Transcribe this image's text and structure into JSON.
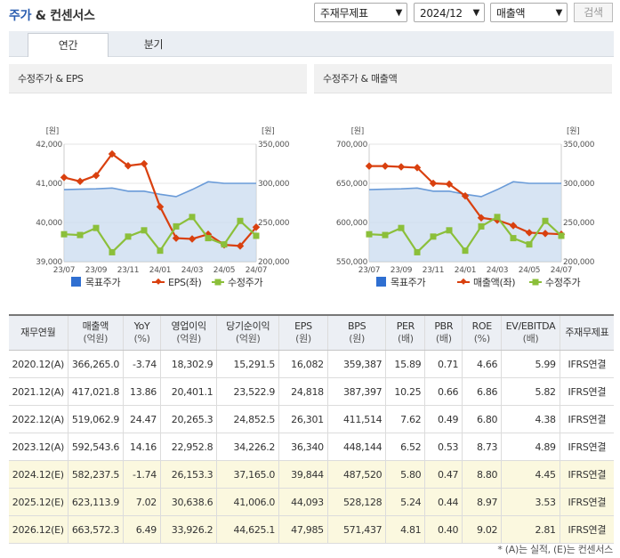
{
  "header": {
    "title_main": "주가",
    "title_rest": " & 컨센서스"
  },
  "controls": {
    "selects": [
      {
        "value": "주재무제표",
        "options_visible": "주재무제표"
      },
      {
        "value": "2024/12"
      },
      {
        "value": "매출액"
      }
    ],
    "search_label": "검색"
  },
  "tabs": [
    {
      "label": "연간",
      "active": true
    },
    {
      "label": "분기",
      "active": false
    }
  ],
  "charts": {
    "left_title": "수정주가 & EPS",
    "right_title": "수정주가 & 매출액"
  },
  "chart_data": [
    {
      "type": "line",
      "title": "수정주가 & EPS",
      "categories": [
        "23/07",
        "23/08",
        "23/09",
        "23/10",
        "23/11",
        "23/12",
        "24/01",
        "24/02",
        "24/03",
        "24/04",
        "24/05",
        "24/06",
        "24/07"
      ],
      "x_tick_labels": [
        "23/07",
        "23/09",
        "23/11",
        "24/01",
        "24/03",
        "24/05",
        "24/07"
      ],
      "left_axis": {
        "unit_label": "[원]",
        "ticks": [
          "42,000",
          "41,000",
          "40,000",
          "39,000"
        ],
        "range": [
          39000,
          42000
        ]
      },
      "right_axis": {
        "unit_label": "[원]",
        "ticks": [
          "350,000",
          "300,000",
          "250,000",
          "200,000"
        ],
        "range": [
          200000,
          350000
        ]
      },
      "series": [
        {
          "name": "목표주가",
          "axis": "right",
          "color": "#6a9bd8",
          "style": "area",
          "values": [
            292000,
            292500,
            293000,
            294000,
            290000,
            290000,
            286000,
            283000,
            292000,
            302000,
            300000,
            300000,
            300000
          ]
        },
        {
          "name": "EPS(좌)",
          "axis": "left",
          "color": "#d9400f",
          "style": "line-diamond",
          "values": [
            41150,
            41050,
            41200,
            41750,
            41450,
            41500,
            40400,
            39600,
            39580,
            39700,
            39430,
            39400,
            39880
          ]
        },
        {
          "name": "수정주가",
          "axis": "right",
          "color": "#8bbf3a",
          "style": "line-square",
          "values": [
            235000,
            234000,
            243000,
            212000,
            232000,
            240000,
            214000,
            245000,
            257000,
            230000,
            222000,
            252000,
            233000
          ]
        }
      ],
      "legend": [
        "목표주가",
        "EPS(좌)",
        "수정주가"
      ]
    },
    {
      "type": "line",
      "title": "수정주가 & 매출액",
      "categories": [
        "23/07",
        "23/08",
        "23/09",
        "23/10",
        "23/11",
        "23/12",
        "24/01",
        "24/02",
        "24/03",
        "24/04",
        "24/05",
        "24/06",
        "24/07"
      ],
      "x_tick_labels": [
        "23/07",
        "23/09",
        "23/11",
        "24/01",
        "24/03",
        "24/05",
        "24/07"
      ],
      "left_axis": {
        "unit_label": "[원]",
        "ticks": [
          "700,000",
          "650,000",
          "600,000",
          "550,000"
        ],
        "range": [
          550000,
          700000
        ]
      },
      "right_axis": {
        "unit_label": "[원]",
        "ticks": [
          "350,000",
          "300,000",
          "250,000",
          "200,000"
        ],
        "range": [
          200000,
          350000
        ]
      },
      "series": [
        {
          "name": "목표주가",
          "axis": "right",
          "color": "#6a9bd8",
          "style": "area",
          "values": [
            292000,
            292500,
            293000,
            294000,
            290000,
            290000,
            286000,
            283000,
            292000,
            302000,
            300000,
            300000,
            300000
          ]
        },
        {
          "name": "매출액(좌)",
          "axis": "left",
          "color": "#d9400f",
          "style": "line-diamond",
          "values": [
            672000,
            672000,
            671000,
            670000,
            650000,
            649000,
            634000,
            606000,
            603000,
            596000,
            587000,
            586000,
            585000
          ]
        },
        {
          "name": "수정주가",
          "axis": "right",
          "color": "#8bbf3a",
          "style": "line-square",
          "values": [
            235000,
            234000,
            243000,
            212000,
            232000,
            240000,
            214000,
            245000,
            257000,
            230000,
            222000,
            252000,
            233000
          ]
        }
      ],
      "legend": [
        "목표주가",
        "매출액(좌)",
        "수정주가"
      ]
    }
  ],
  "table": {
    "headers": [
      {
        "label": "재무연월",
        "unit": ""
      },
      {
        "label": "매출액",
        "unit": "(억원)"
      },
      {
        "label": "YoY",
        "unit": "(%)"
      },
      {
        "label": "영업이익",
        "unit": "(억원)"
      },
      {
        "label": "당기순이익",
        "unit": "(억원)"
      },
      {
        "label": "EPS",
        "unit": "(원)"
      },
      {
        "label": "BPS",
        "unit": "(원)"
      },
      {
        "label": "PER",
        "unit": "(배)"
      },
      {
        "label": "PBR",
        "unit": "(배)"
      },
      {
        "label": "ROE",
        "unit": "(%)"
      },
      {
        "label": "EV/EBITDA",
        "unit": "(배)"
      },
      {
        "label": "주재무제표",
        "unit": ""
      }
    ],
    "rows": [
      {
        "estimate": false,
        "cells": [
          "2020.12(A)",
          "366,265.0",
          "-3.74",
          "18,302.9",
          "15,291.5",
          "16,082",
          "359,387",
          "15.89",
          "0.71",
          "4.66",
          "5.99",
          "IFRS연결"
        ]
      },
      {
        "estimate": false,
        "cells": [
          "2021.12(A)",
          "417,021.8",
          "13.86",
          "20,401.1",
          "23,522.9",
          "24,818",
          "387,397",
          "10.25",
          "0.66",
          "6.86",
          "5.82",
          "IFRS연결"
        ]
      },
      {
        "estimate": false,
        "cells": [
          "2022.12(A)",
          "519,062.9",
          "24.47",
          "20,265.3",
          "24,852.5",
          "26,301",
          "411,514",
          "7.62",
          "0.49",
          "6.80",
          "4.38",
          "IFRS연결"
        ]
      },
      {
        "estimate": false,
        "cells": [
          "2023.12(A)",
          "592,543.6",
          "14.16",
          "22,952.8",
          "34,226.2",
          "36,340",
          "448,144",
          "6.52",
          "0.53",
          "8.73",
          "4.89",
          "IFRS연결"
        ]
      },
      {
        "estimate": true,
        "cells": [
          "2024.12(E)",
          "582,237.5",
          "-1.74",
          "26,153.3",
          "37,165.0",
          "39,844",
          "487,520",
          "5.80",
          "0.47",
          "8.80",
          "4.45",
          "IFRS연결"
        ]
      },
      {
        "estimate": true,
        "cells": [
          "2025.12(E)",
          "623,113.9",
          "7.02",
          "30,638.6",
          "41,006.0",
          "44,093",
          "528,128",
          "5.24",
          "0.44",
          "8.97",
          "3.53",
          "IFRS연결"
        ]
      },
      {
        "estimate": true,
        "cells": [
          "2026.12(E)",
          "663,572.3",
          "6.49",
          "33,926.2",
          "44,625.1",
          "47,985",
          "571,437",
          "4.81",
          "0.40",
          "9.02",
          "2.81",
          "IFRS연결"
        ]
      }
    ]
  },
  "footnote": "* (A)는 실적, (E)는 컨센서스"
}
